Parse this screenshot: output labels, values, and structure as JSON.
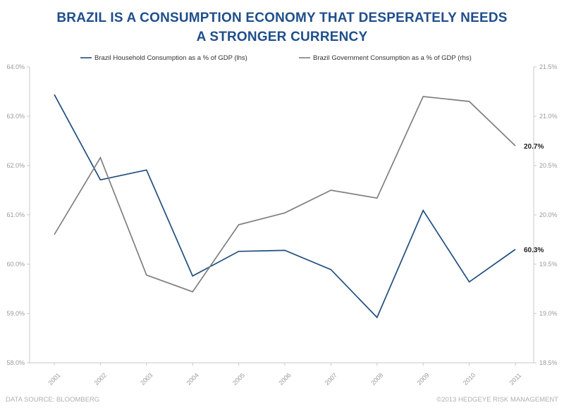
{
  "title_lines": [
    "BRAZIL IS A CONSUMPTION ECONOMY THAT DESPERATELY NEEDS",
    "A STRONGER CURRENCY"
  ],
  "footer": {
    "source": "DATA SOURCE: BLOOMBERG",
    "copyright": "©2013 HEDGEYE RISK MANAGEMENT"
  },
  "colors": {
    "household": "#1f4e7d",
    "government": "#7f7f7f",
    "title": "#1f4e8c"
  },
  "chart_data": {
    "type": "line",
    "title": "BRAZIL IS A CONSUMPTION ECONOMY THAT DESPERATELY NEEDS A STRONGER CURRENCY",
    "categories": [
      "2001",
      "2002",
      "2003",
      "2004",
      "2005",
      "2006",
      "2007",
      "2008",
      "2009",
      "2010",
      "2011"
    ],
    "grid": false,
    "legend_position": "top",
    "y_left": {
      "ylim": [
        58.0,
        64.0
      ],
      "ticks": [
        "58.0%",
        "59.0%",
        "60.0%",
        "61.0%",
        "62.0%",
        "63.0%",
        "64.0%"
      ]
    },
    "y_right": {
      "ylim": [
        18.5,
        21.5
      ],
      "ticks": [
        "18.5%",
        "19.0%",
        "19.5%",
        "20.0%",
        "20.5%",
        "21.0%",
        "21.5%"
      ]
    },
    "series": [
      {
        "name": "Brazil Household Consumption  as a % of GDP (lhs)",
        "axis": "left",
        "values": [
          63.44,
          61.71,
          61.91,
          59.76,
          60.26,
          60.28,
          59.89,
          58.92,
          61.09,
          59.64,
          60.3
        ],
        "end_label": "60.3%"
      },
      {
        "name": "Brazil Government Consumption  as a % of GDP (rhs)",
        "axis": "right",
        "values": [
          19.8,
          20.58,
          19.39,
          19.22,
          19.9,
          20.02,
          20.25,
          20.17,
          21.2,
          21.15,
          20.7
        ],
        "end_label": "20.7%"
      }
    ]
  }
}
